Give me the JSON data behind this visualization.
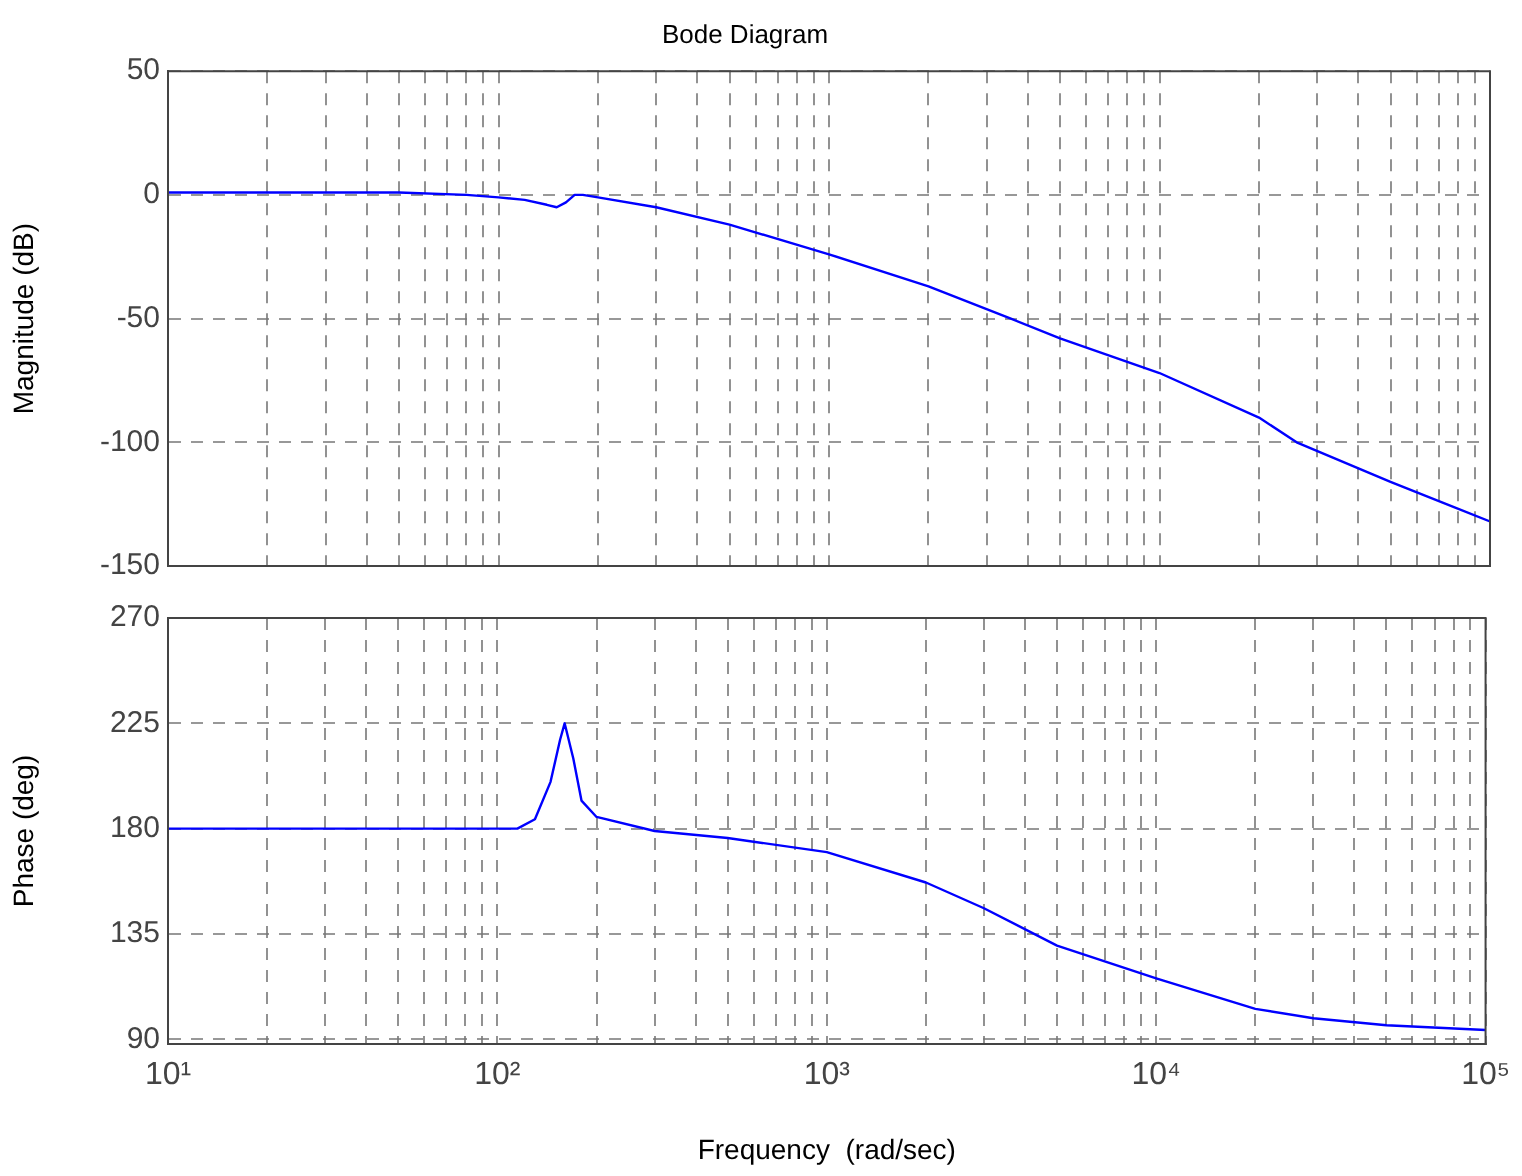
{
  "chart_data": [
    {
      "type": "line",
      "title": "Bode Diagram",
      "ylabel": "Magnitude (dB)",
      "log": "x",
      "grid": true,
      "tick_labels": "y",
      "marker": "none",
      "x": [
        10,
        50,
        80,
        100,
        120,
        140,
        150,
        160,
        170,
        180,
        200,
        300,
        500,
        1000,
        2000,
        3550,
        5000,
        10000,
        20000,
        26000,
        50000,
        100000
      ],
      "series": [
        {
          "color": "#0000ff",
          "values": [
            1,
            1,
            0,
            -1,
            -2,
            -4,
            -5,
            -3,
            0,
            0,
            -1,
            -5,
            -12,
            -24,
            -37,
            -50,
            -58,
            -72,
            -90,
            -100,
            -116,
            -132
          ]
        }
      ],
      "xlim": [
        10,
        100000
      ],
      "ylim": [
        -150,
        50
      ],
      "yticks": [
        -150,
        -100,
        -50,
        0,
        50
      ],
      "xticks": [
        {
          "value": 10,
          "label": null
        },
        {
          "value": 20,
          "label": null
        },
        {
          "value": 30,
          "label": null
        },
        {
          "value": 40,
          "label": null
        },
        {
          "value": 50,
          "label": null
        },
        {
          "value": 60,
          "label": null
        },
        {
          "value": 70,
          "label": null
        },
        {
          "value": 80,
          "label": null
        },
        {
          "value": 90,
          "label": null
        },
        {
          "value": 100,
          "label": null
        },
        {
          "value": 200,
          "label": null
        },
        {
          "value": 300,
          "label": null
        },
        {
          "value": 400,
          "label": null
        },
        {
          "value": 500,
          "label": null
        },
        {
          "value": 600,
          "label": null
        },
        {
          "value": 700,
          "label": null
        },
        {
          "value": 800,
          "label": null
        },
        {
          "value": 900,
          "label": null
        },
        {
          "value": 1000,
          "label": null
        },
        {
          "value": 2000,
          "label": null
        },
        {
          "value": 3000,
          "label": null
        },
        {
          "value": 4000,
          "label": null
        },
        {
          "value": 5000,
          "label": null
        },
        {
          "value": 6000,
          "label": null
        },
        {
          "value": 7000,
          "label": null
        },
        {
          "value": 8000,
          "label": null
        },
        {
          "value": 9000,
          "label": null
        },
        {
          "value": 10000,
          "label": null
        },
        {
          "value": 20000,
          "label": null
        },
        {
          "value": 30000,
          "label": null
        },
        {
          "value": 40000,
          "label": null
        },
        {
          "value": 50000,
          "label": null
        },
        {
          "value": 60000,
          "label": null
        },
        {
          "value": 70000,
          "label": null
        },
        {
          "value": 80000,
          "label": null
        },
        {
          "value": 90000,
          "label": null
        },
        {
          "value": 100000,
          "label": null
        }
      ]
    },
    {
      "type": "line",
      "ylabel": "Phase (deg)",
      "xlabel": "Frequency  (rad/sec)",
      "log": "x",
      "grid": true,
      "marker": "none",
      "x": [
        10,
        50,
        100,
        115,
        130,
        145,
        155,
        160,
        170,
        180,
        200,
        300,
        500,
        1000,
        2000,
        3000,
        5000,
        10000,
        20000,
        30000,
        50000,
        100000
      ],
      "series": [
        {
          "color": "#0000ff",
          "values": [
            180,
            180,
            180,
            180,
            184,
            200,
            218,
            225,
            210,
            192,
            185,
            179,
            176,
            170,
            157,
            146,
            130,
            116,
            103,
            99,
            96,
            94
          ]
        }
      ],
      "xlim": [
        10,
        100000
      ],
      "ylim": [
        88,
        270
      ],
      "yticks": [
        90,
        135,
        180,
        225,
        270
      ],
      "xticks": [
        {
          "value": 10,
          "label": "10¹"
        },
        {
          "value": 20,
          "label": null
        },
        {
          "value": 30,
          "label": null
        },
        {
          "value": 40,
          "label": null
        },
        {
          "value": 50,
          "label": null
        },
        {
          "value": 60,
          "label": null
        },
        {
          "value": 70,
          "label": null
        },
        {
          "value": 80,
          "label": null
        },
        {
          "value": 90,
          "label": null
        },
        {
          "value": 100,
          "label": "10²"
        },
        {
          "value": 200,
          "label": null
        },
        {
          "value": 300,
          "label": null
        },
        {
          "value": 400,
          "label": null
        },
        {
          "value": 500,
          "label": null
        },
        {
          "value": 600,
          "label": null
        },
        {
          "value": 700,
          "label": null
        },
        {
          "value": 800,
          "label": null
        },
        {
          "value": 900,
          "label": null
        },
        {
          "value": 1000,
          "label": "10³"
        },
        {
          "value": 2000,
          "label": null
        },
        {
          "value": 3000,
          "label": null
        },
        {
          "value": 4000,
          "label": null
        },
        {
          "value": 5000,
          "label": null
        },
        {
          "value": 6000,
          "label": null
        },
        {
          "value": 7000,
          "label": null
        },
        {
          "value": 8000,
          "label": null
        },
        {
          "value": 9000,
          "label": null
        },
        {
          "value": 10000,
          "label": "10⁴"
        },
        {
          "value": 20000,
          "label": null
        },
        {
          "value": 30000,
          "label": null
        },
        {
          "value": 40000,
          "label": null
        },
        {
          "value": 50000,
          "label": null
        },
        {
          "value": 60000,
          "label": null
        },
        {
          "value": 70000,
          "label": null
        },
        {
          "value": 80000,
          "label": null
        },
        {
          "value": 90000,
          "label": null
        },
        {
          "value": 100000,
          "label": "10⁵"
        }
      ]
    }
  ]
}
